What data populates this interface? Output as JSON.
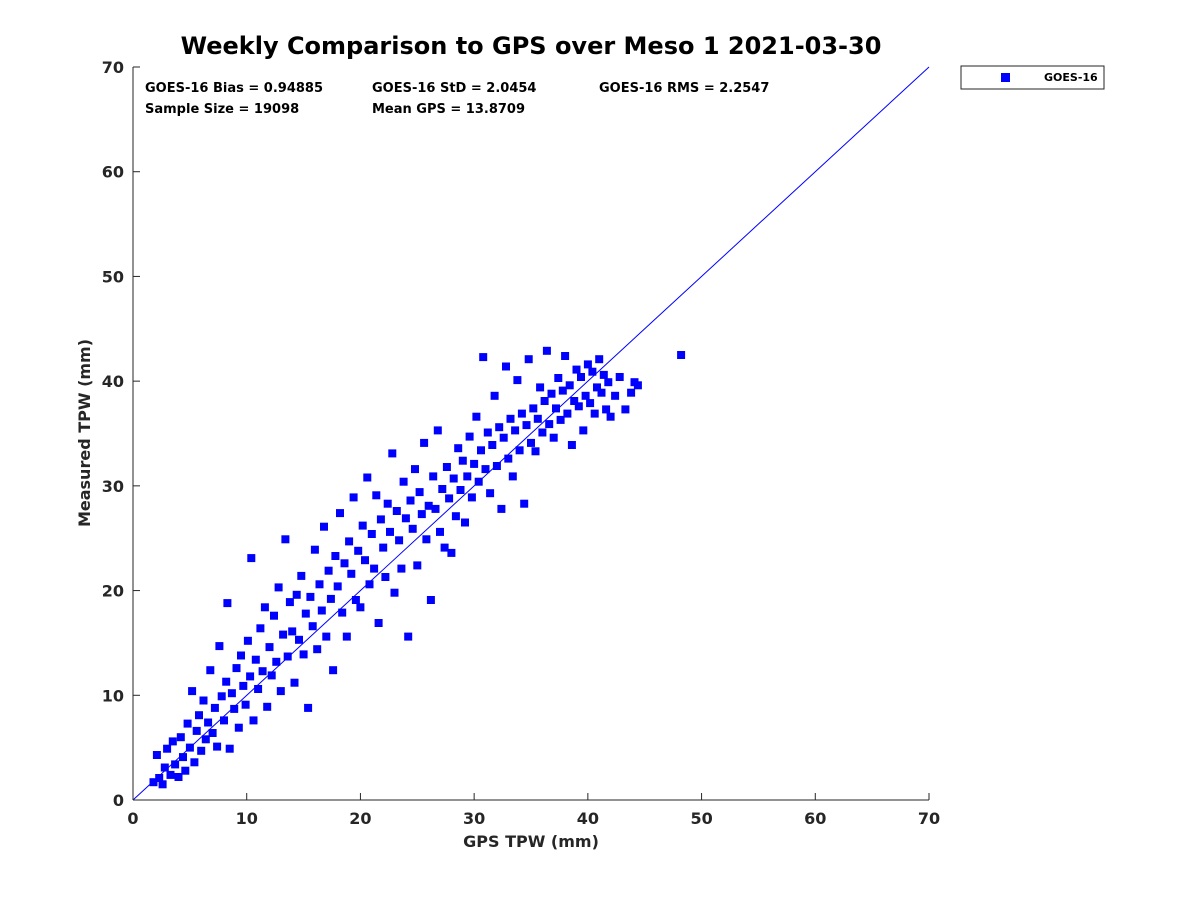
{
  "chart_data": {
    "type": "scatter",
    "title": "Weekly Comparison to GPS over Meso 1 2021-03-30",
    "xlabel": "GPS TPW (mm)",
    "ylabel": "Measured TPW (mm)",
    "xlim": [
      0,
      70
    ],
    "ylim": [
      0,
      70
    ],
    "xticks": [
      0,
      10,
      20,
      30,
      40,
      50,
      60,
      70
    ],
    "yticks": [
      0,
      10,
      20,
      30,
      40,
      50,
      60,
      70
    ],
    "legend": {
      "position": "outside-top-right",
      "entries": [
        "GOES-16"
      ]
    },
    "stats": {
      "bias": "GOES-16 Bias = 0.94885",
      "std": "GOES-16 StD = 2.0454",
      "rms": "GOES-16 RMS = 2.2547",
      "sample_size": "Sample Size = 19098",
      "mean_gps": "Mean GPS = 13.8709"
    },
    "reference_line": {
      "name": "one-to-one",
      "from": [
        0,
        0
      ],
      "to": [
        70,
        70
      ]
    },
    "series": [
      {
        "name": "GOES-16",
        "color": "#0000ff",
        "marker": "square",
        "points": [
          [
            1.8,
            1.7
          ],
          [
            2.1,
            4.3
          ],
          [
            2.3,
            2.1
          ],
          [
            2.6,
            1.5
          ],
          [
            2.8,
            3.1
          ],
          [
            3.0,
            4.9
          ],
          [
            3.3,
            2.4
          ],
          [
            3.5,
            5.6
          ],
          [
            3.7,
            3.4
          ],
          [
            4.0,
            2.2
          ],
          [
            4.2,
            6.0
          ],
          [
            4.4,
            4.1
          ],
          [
            4.6,
            2.8
          ],
          [
            4.8,
            7.3
          ],
          [
            5.0,
            5.0
          ],
          [
            5.2,
            10.4
          ],
          [
            5.4,
            3.6
          ],
          [
            5.6,
            6.6
          ],
          [
            5.8,
            8.1
          ],
          [
            6.0,
            4.7
          ],
          [
            6.2,
            9.5
          ],
          [
            6.4,
            5.8
          ],
          [
            6.6,
            7.4
          ],
          [
            6.8,
            12.4
          ],
          [
            7.0,
            6.4
          ],
          [
            7.2,
            8.8
          ],
          [
            7.4,
            5.1
          ],
          [
            7.6,
            14.7
          ],
          [
            7.8,
            9.9
          ],
          [
            8.0,
            7.6
          ],
          [
            8.2,
            11.3
          ],
          [
            8.3,
            18.8
          ],
          [
            8.5,
            4.9
          ],
          [
            8.7,
            10.2
          ],
          [
            8.9,
            8.7
          ],
          [
            9.1,
            12.6
          ],
          [
            9.3,
            6.9
          ],
          [
            9.5,
            13.8
          ],
          [
            9.7,
            10.9
          ],
          [
            9.9,
            9.1
          ],
          [
            10.1,
            15.2
          ],
          [
            10.3,
            11.8
          ],
          [
            10.4,
            23.1
          ],
          [
            10.6,
            7.6
          ],
          [
            10.8,
            13.4
          ],
          [
            11.0,
            10.6
          ],
          [
            11.2,
            16.4
          ],
          [
            11.4,
            12.3
          ],
          [
            11.6,
            18.4
          ],
          [
            11.8,
            8.9
          ],
          [
            12.0,
            14.6
          ],
          [
            12.2,
            11.9
          ],
          [
            12.4,
            17.6
          ],
          [
            12.6,
            13.2
          ],
          [
            12.8,
            20.3
          ],
          [
            13.0,
            10.4
          ],
          [
            13.2,
            15.8
          ],
          [
            13.4,
            24.9
          ],
          [
            13.6,
            13.7
          ],
          [
            13.8,
            18.9
          ],
          [
            14.0,
            16.1
          ],
          [
            14.2,
            11.2
          ],
          [
            14.4,
            19.6
          ],
          [
            14.6,
            15.3
          ],
          [
            14.8,
            21.4
          ],
          [
            15.0,
            13.9
          ],
          [
            15.2,
            17.8
          ],
          [
            15.4,
            8.8
          ],
          [
            15.6,
            19.4
          ],
          [
            15.8,
            16.6
          ],
          [
            16.0,
            23.9
          ],
          [
            16.2,
            14.4
          ],
          [
            16.4,
            20.6
          ],
          [
            16.6,
            18.1
          ],
          [
            16.8,
            26.1
          ],
          [
            17.0,
            15.6
          ],
          [
            17.2,
            21.9
          ],
          [
            17.4,
            19.2
          ],
          [
            17.6,
            12.4
          ],
          [
            17.8,
            23.3
          ],
          [
            18.0,
            20.4
          ],
          [
            18.2,
            27.4
          ],
          [
            18.4,
            17.9
          ],
          [
            18.6,
            22.6
          ],
          [
            18.8,
            15.6
          ],
          [
            19.0,
            24.7
          ],
          [
            19.2,
            21.6
          ],
          [
            19.4,
            28.9
          ],
          [
            19.6,
            19.1
          ],
          [
            19.8,
            23.8
          ],
          [
            20.0,
            18.4
          ],
          [
            20.2,
            26.2
          ],
          [
            20.4,
            22.9
          ],
          [
            20.6,
            30.8
          ],
          [
            20.8,
            20.6
          ],
          [
            21.0,
            25.4
          ],
          [
            21.2,
            22.1
          ],
          [
            21.4,
            29.1
          ],
          [
            21.6,
            16.9
          ],
          [
            21.8,
            26.8
          ],
          [
            22.0,
            24.1
          ],
          [
            22.2,
            21.3
          ],
          [
            22.4,
            28.3
          ],
          [
            22.6,
            25.6
          ],
          [
            22.8,
            33.1
          ],
          [
            23.0,
            19.8
          ],
          [
            23.2,
            27.6
          ],
          [
            23.4,
            24.8
          ],
          [
            23.6,
            22.1
          ],
          [
            23.8,
            30.4
          ],
          [
            24.0,
            26.9
          ],
          [
            24.2,
            15.6
          ],
          [
            24.4,
            28.6
          ],
          [
            24.6,
            25.9
          ],
          [
            24.8,
            31.6
          ],
          [
            25.0,
            22.4
          ],
          [
            25.2,
            29.4
          ],
          [
            25.4,
            27.3
          ],
          [
            25.6,
            34.1
          ],
          [
            25.8,
            24.9
          ],
          [
            26.0,
            28.1
          ],
          [
            26.2,
            19.1
          ],
          [
            26.4,
            30.9
          ],
          [
            26.6,
            27.8
          ],
          [
            26.8,
            35.3
          ],
          [
            27.0,
            25.6
          ],
          [
            27.2,
            29.7
          ],
          [
            27.4,
            24.1
          ],
          [
            27.6,
            31.8
          ],
          [
            27.8,
            28.8
          ],
          [
            28.0,
            23.6
          ],
          [
            28.2,
            30.7
          ],
          [
            28.4,
            27.1
          ],
          [
            28.6,
            33.6
          ],
          [
            28.8,
            29.6
          ],
          [
            29.0,
            32.4
          ],
          [
            29.2,
            26.5
          ],
          [
            29.4,
            30.9
          ],
          [
            29.6,
            34.7
          ],
          [
            29.8,
            28.9
          ],
          [
            30.0,
            32.1
          ],
          [
            30.2,
            36.6
          ],
          [
            30.4,
            30.4
          ],
          [
            30.6,
            33.4
          ],
          [
            30.8,
            42.3
          ],
          [
            31.0,
            31.6
          ],
          [
            31.2,
            35.1
          ],
          [
            31.4,
            29.3
          ],
          [
            31.6,
            33.9
          ],
          [
            31.8,
            38.6
          ],
          [
            32.0,
            31.9
          ],
          [
            32.2,
            35.6
          ],
          [
            32.4,
            27.8
          ],
          [
            32.6,
            34.6
          ],
          [
            32.8,
            41.4
          ],
          [
            33.0,
            32.6
          ],
          [
            33.2,
            36.4
          ],
          [
            33.4,
            30.9
          ],
          [
            33.6,
            35.3
          ],
          [
            33.8,
            40.1
          ],
          [
            34.0,
            33.4
          ],
          [
            34.2,
            36.9
          ],
          [
            34.4,
            28.3
          ],
          [
            34.6,
            35.8
          ],
          [
            34.8,
            42.1
          ],
          [
            35.0,
            34.1
          ],
          [
            35.2,
            37.4
          ],
          [
            35.4,
            33.3
          ],
          [
            35.6,
            36.4
          ],
          [
            35.8,
            39.4
          ],
          [
            36.0,
            35.1
          ],
          [
            36.2,
            38.1
          ],
          [
            36.4,
            42.9
          ],
          [
            36.6,
            35.9
          ],
          [
            36.8,
            38.8
          ],
          [
            37.0,
            34.6
          ],
          [
            37.2,
            37.4
          ],
          [
            37.4,
            40.3
          ],
          [
            37.6,
            36.3
          ],
          [
            37.8,
            39.1
          ],
          [
            38.0,
            42.4
          ],
          [
            38.2,
            36.9
          ],
          [
            38.4,
            39.6
          ],
          [
            38.6,
            33.9
          ],
          [
            38.8,
            38.1
          ],
          [
            39.0,
            41.1
          ],
          [
            39.2,
            37.6
          ],
          [
            39.4,
            40.4
          ],
          [
            39.6,
            35.3
          ],
          [
            39.8,
            38.6
          ],
          [
            40.0,
            41.6
          ],
          [
            40.2,
            37.9
          ],
          [
            40.4,
            40.9
          ],
          [
            40.6,
            36.9
          ],
          [
            40.8,
            39.4
          ],
          [
            41.0,
            42.1
          ],
          [
            41.2,
            38.9
          ],
          [
            41.4,
            40.6
          ],
          [
            41.6,
            37.3
          ],
          [
            41.8,
            39.9
          ],
          [
            42.0,
            36.6
          ],
          [
            42.4,
            38.6
          ],
          [
            42.8,
            40.4
          ],
          [
            43.3,
            37.3
          ],
          [
            43.8,
            38.9
          ],
          [
            44.1,
            39.9
          ],
          [
            44.4,
            39.6
          ],
          [
            48.2,
            42.5
          ]
        ]
      }
    ]
  }
}
